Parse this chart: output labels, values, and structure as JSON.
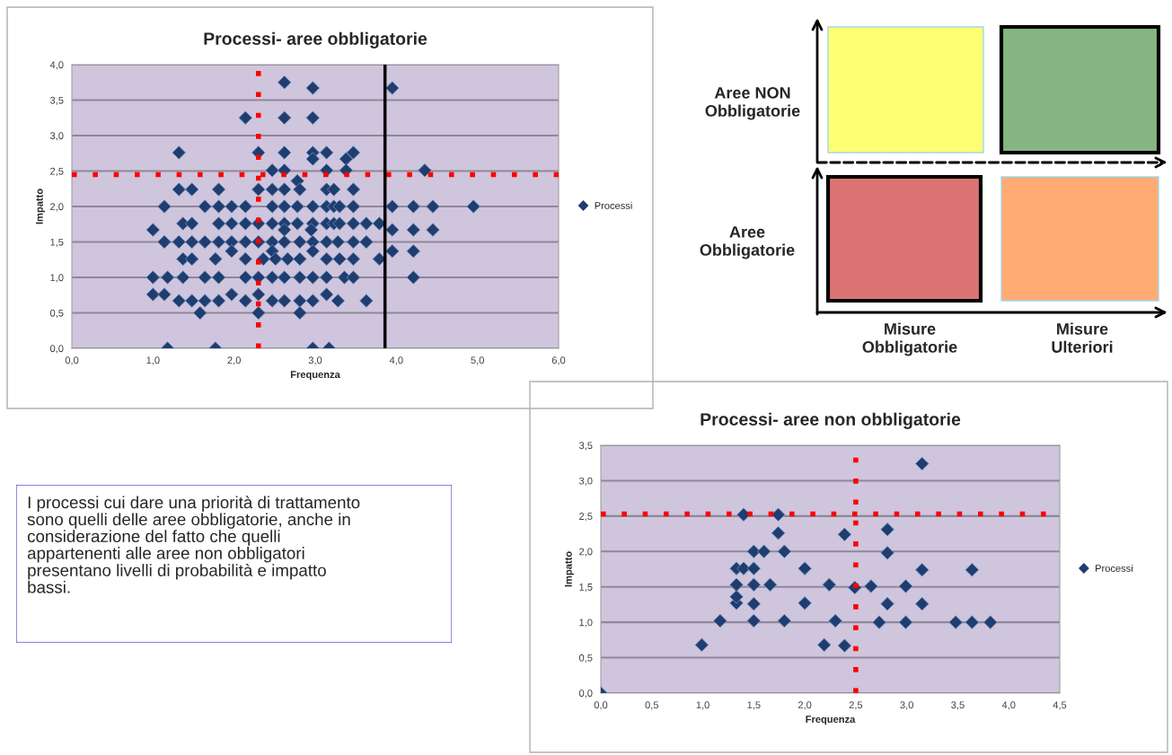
{
  "chart_data": [
    {
      "type": "scatter",
      "title": "Processi- aree obbligatorie",
      "xlabel": "Frequenza",
      "ylabel": "Impatto",
      "xlim": [
        0,
        6
      ],
      "ylim": [
        0,
        4
      ],
      "xticks": [
        {
          "value": 0,
          "label": "0,0"
        },
        {
          "value": 1,
          "label": "1,0"
        },
        {
          "value": 2,
          "label": "2,0"
        },
        {
          "value": 3,
          "label": "3,0"
        },
        {
          "value": 4,
          "label": "4,0"
        },
        {
          "value": 5,
          "label": "5,0"
        },
        {
          "value": 6,
          "label": "6,0"
        }
      ],
      "yticks": [
        {
          "value": 0,
          "label": "0,0"
        },
        {
          "value": 0.5,
          "label": "0,5"
        },
        {
          "value": 1,
          "label": "1,0"
        },
        {
          "value": 1.5,
          "label": "1,5"
        },
        {
          "value": 2,
          "label": "2,0"
        },
        {
          "value": 2.5,
          "label": "2,5"
        },
        {
          "value": 3,
          "label": "3,0"
        },
        {
          "value": 3.5,
          "label": "3,5"
        },
        {
          "value": 4,
          "label": "4,0"
        }
      ],
      "grid": "y",
      "legend": "right",
      "marker": "diamond",
      "ref_lines": [
        {
          "axis": "x",
          "value": 2.3,
          "color": "#ff0000",
          "line_style": "dotted"
        },
        {
          "axis": "y",
          "value": 2.45,
          "color": "#ff0000",
          "line_style": "dotted"
        },
        {
          "axis": "x",
          "value": 3.86,
          "color": "#000000",
          "line_style": "solid"
        }
      ],
      "series": [
        {
          "name": "Processi",
          "color": "#1f3d6e",
          "x": [
            2.62,
            2.97,
            3.95,
            2.14,
            2.62,
            2.97,
            1.32,
            2.3,
            2.62,
            2.97,
            3.14,
            3.47,
            2.97,
            3.38,
            2.47,
            2.62,
            3.14,
            3.38,
            4.35,
            2.78,
            1.32,
            1.48,
            1.81,
            2.3,
            2.47,
            2.62,
            2.81,
            3.14,
            3.23,
            3.47,
            1.14,
            1.64,
            1.81,
            1.97,
            2.14,
            2.47,
            2.62,
            2.78,
            2.97,
            3.14,
            3.23,
            3.3,
            3.47,
            3.95,
            4.21,
            4.45,
            4.95,
            1.37,
            1.48,
            1.81,
            1.97,
            2.14,
            2.3,
            2.47,
            2.62,
            2.78,
            2.97,
            3.14,
            3.23,
            3.3,
            3.47,
            3.63,
            3.79,
            1.0,
            2.62,
            2.95,
            3.95,
            4.21,
            4.45,
            1.14,
            1.32,
            1.48,
            1.64,
            1.81,
            1.97,
            2.14,
            2.3,
            2.47,
            2.62,
            2.81,
            2.97,
            3.14,
            3.28,
            3.47,
            3.63,
            1.97,
            2.47,
            2.97,
            3.95,
            4.21,
            1.37,
            1.48,
            1.77,
            2.14,
            2.36,
            2.51,
            2.66,
            2.81,
            3.14,
            3.3,
            3.47,
            3.79,
            1.0,
            1.18,
            1.37,
            1.64,
            1.81,
            2.14,
            2.3,
            2.47,
            2.62,
            2.81,
            2.97,
            3.14,
            3.36,
            3.47,
            4.21,
            1.0,
            1.14,
            1.97,
            2.3,
            3.14,
            1.32,
            1.48,
            1.64,
            1.81,
            2.14,
            2.47,
            2.62,
            2.81,
            2.97,
            3.28,
            3.63,
            1.58,
            2.3,
            2.81,
            1.18,
            1.77,
            2.97,
            3.17
          ],
          "values": [
            3.75,
            3.67,
            3.67,
            3.25,
            3.25,
            3.25,
            2.76,
            2.76,
            2.76,
            2.76,
            2.76,
            2.76,
            2.67,
            2.67,
            2.51,
            2.51,
            2.51,
            2.51,
            2.51,
            2.36,
            2.24,
            2.24,
            2.24,
            2.24,
            2.24,
            2.24,
            2.24,
            2.24,
            2.24,
            2.24,
            2.0,
            2.0,
            2.0,
            2.0,
            2.0,
            2.0,
            2.0,
            2.0,
            2.0,
            2.0,
            2.0,
            2.0,
            2.0,
            2.0,
            2.0,
            2.0,
            2.0,
            1.76,
            1.76,
            1.76,
            1.76,
            1.76,
            1.76,
            1.76,
            1.76,
            1.76,
            1.76,
            1.76,
            1.76,
            1.76,
            1.76,
            1.76,
            1.76,
            1.67,
            1.67,
            1.67,
            1.67,
            1.67,
            1.67,
            1.5,
            1.5,
            1.5,
            1.5,
            1.5,
            1.5,
            1.5,
            1.5,
            1.5,
            1.5,
            1.5,
            1.5,
            1.5,
            1.5,
            1.5,
            1.5,
            1.37,
            1.37,
            1.37,
            1.37,
            1.37,
            1.26,
            1.26,
            1.26,
            1.26,
            1.26,
            1.26,
            1.26,
            1.26,
            1.26,
            1.26,
            1.26,
            1.26,
            1.0,
            1.0,
            1.0,
            1.0,
            1.0,
            1.0,
            1.0,
            1.0,
            1.0,
            1.0,
            1.0,
            1.0,
            1.0,
            1.0,
            1.0,
            0.76,
            0.76,
            0.76,
            0.76,
            0.76,
            0.67,
            0.67,
            0.67,
            0.67,
            0.67,
            0.67,
            0.67,
            0.67,
            0.67,
            0.67,
            0.67,
            0.5,
            0.5,
            0.5,
            0,
            0,
            0,
            0
          ]
        }
      ]
    },
    {
      "type": "other",
      "annotations": [
        "Aree NON\nObbligatorie",
        "Aree\nObbligatorie",
        "Misure\nObbligatorie",
        "Misure\nUlteriori"
      ]
    },
    {
      "type": "scatter",
      "title": "Processi- aree non obbligatorie",
      "xlabel": "Frequenza",
      "ylabel": "Impatto",
      "xlim": [
        0,
        4.5
      ],
      "ylim": [
        0,
        3.5
      ],
      "xticks": [
        {
          "value": 0,
          "label": "0,0"
        },
        {
          "value": 0.5,
          "label": "0,5"
        },
        {
          "value": 1,
          "label": "1,0"
        },
        {
          "value": 1.5,
          "label": "1,5"
        },
        {
          "value": 2,
          "label": "2,0"
        },
        {
          "value": 2.5,
          "label": "2,5"
        },
        {
          "value": 3,
          "label": "3,0"
        },
        {
          "value": 3.5,
          "label": "3,5"
        },
        {
          "value": 4,
          "label": "4,0"
        },
        {
          "value": 4.5,
          "label": "4,5"
        }
      ],
      "yticks": [
        {
          "value": 0,
          "label": "0,0"
        },
        {
          "value": 0.5,
          "label": "0,5"
        },
        {
          "value": 1,
          "label": "1,0"
        },
        {
          "value": 1.5,
          "label": "1,5"
        },
        {
          "value": 2,
          "label": "2,0"
        },
        {
          "value": 2.5,
          "label": "2,5"
        },
        {
          "value": 3,
          "label": "3,0"
        },
        {
          "value": 3.5,
          "label": "3,5"
        }
      ],
      "grid": "y",
      "legend": "right",
      "marker": "diamond",
      "ref_lines": [
        {
          "axis": "x",
          "value": 2.5,
          "color": "#ff0000",
          "line_style": "dotted"
        },
        {
          "axis": "y",
          "value": 2.53,
          "color": "#ff0000",
          "line_style": "dotted"
        }
      ],
      "series": [
        {
          "name": "Processi",
          "color": "#1f3d6e",
          "x": [
            0,
            0.99,
            1.17,
            1.33,
            1.33,
            1.33,
            1.33,
            1.4,
            1.4,
            1.5,
            1.5,
            1.5,
            1.5,
            1.5,
            1.6,
            1.66,
            1.74,
            1.74,
            1.8,
            1.8,
            2.0,
            2.0,
            2.19,
            2.24,
            2.3,
            2.39,
            2.39,
            2.49,
            2.65,
            2.73,
            2.81,
            2.81,
            2.81,
            2.99,
            2.99,
            3.15,
            3.15,
            3.15,
            3.48,
            3.64,
            3.64,
            3.82
          ],
          "values": [
            0,
            0.68,
            1.02,
            1.27,
            1.36,
            1.53,
            1.76,
            1.76,
            2.52,
            2.0,
            1.76,
            1.53,
            1.26,
            1.02,
            2.0,
            1.53,
            2.52,
            2.26,
            2.0,
            1.02,
            1.76,
            1.27,
            0.68,
            1.53,
            1.02,
            0.67,
            2.24,
            1.49,
            1.51,
            1.0,
            1.26,
            1.98,
            2.31,
            1.51,
            1.0,
            3.24,
            1.74,
            1.26,
            1.0,
            1.0,
            1.74,
            1.0
          ]
        }
      ]
    },
    {
      "type": "other",
      "annotations": [
        "I processi cui dare una priorità di trattamento\nsono quelli delle aree obbligatorie, anche in\nconsiderazione del fatto che quelli\nappartenenti alle aree non obbligatori\npresentano livelli di probabilità e impatto\nbassi."
      ]
    }
  ]
}
